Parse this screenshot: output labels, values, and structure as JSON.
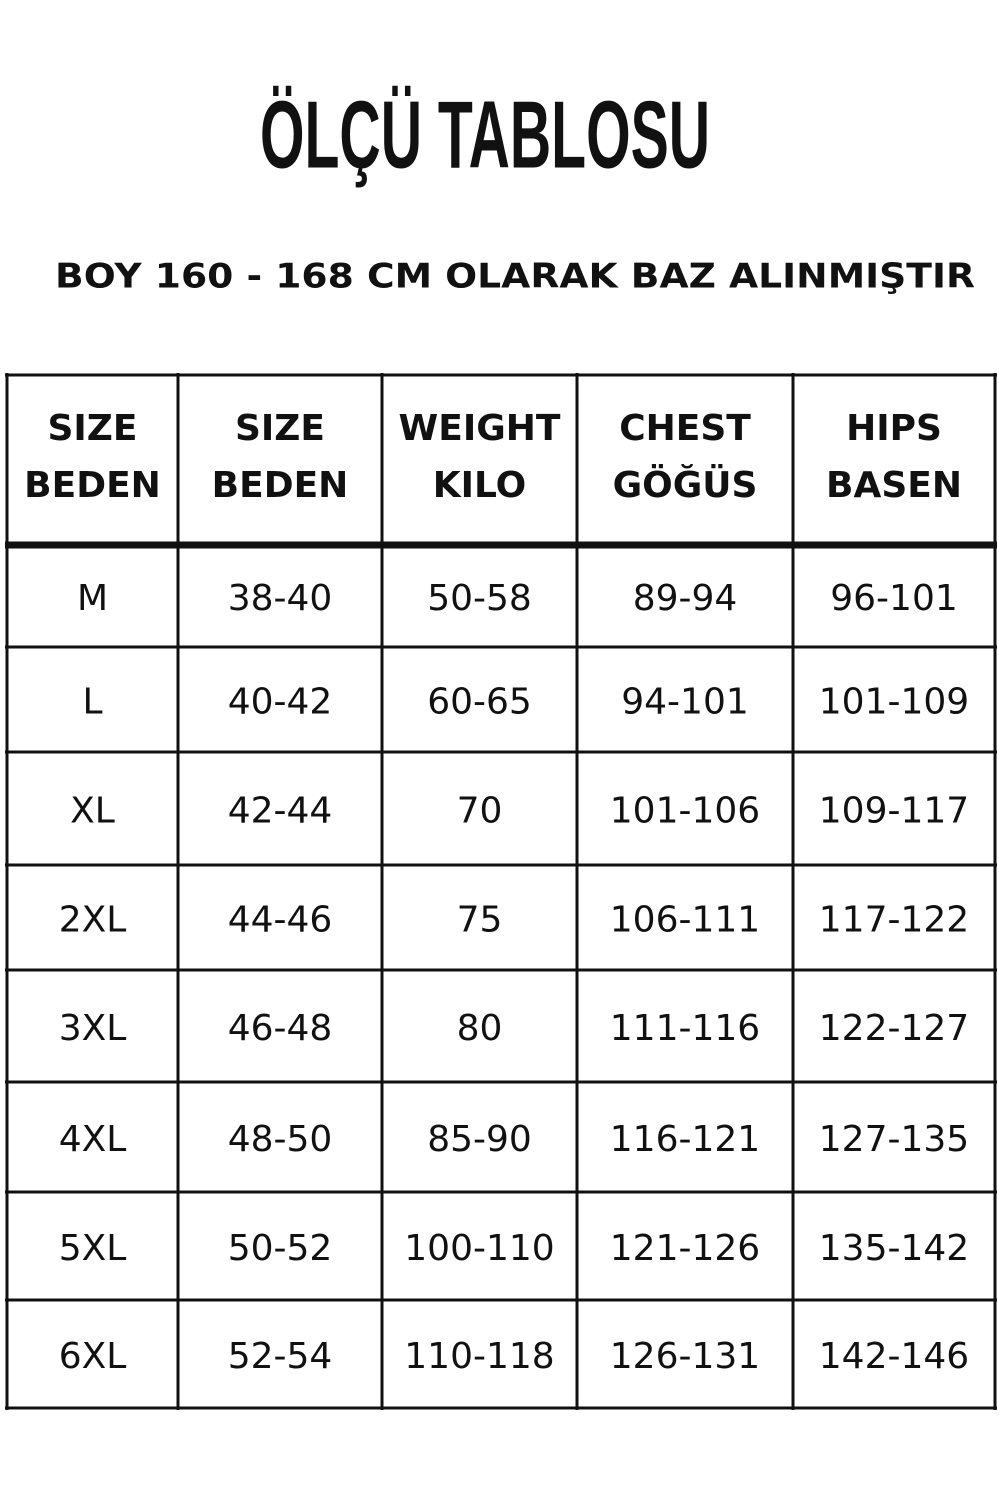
{
  "title": "ÖLÇÜ TABLOSU",
  "subtitle": "BOY 160 - 168 CM OLARAK BAZ ALINMIŞTIR",
  "table": {
    "header": [
      [
        "SIZE",
        "BEDEN"
      ],
      [
        "SIZE",
        "BEDEN"
      ],
      [
        "WEIGHT",
        "KILO"
      ],
      [
        "CHEST",
        "GÖĞÜS"
      ],
      [
        "HIPS",
        "BASEN"
      ]
    ],
    "rows": [
      [
        "M",
        "38-40",
        "50-58",
        "89-94",
        "96-101"
      ],
      [
        "L",
        "40-42",
        "60-65",
        "94-101",
        "101-109"
      ],
      [
        "XL",
        "42-44",
        "70",
        "101-106",
        "109-117"
      ],
      [
        "2XL",
        "44-46",
        "75",
        "106-111",
        "117-122"
      ],
      [
        "3XL",
        "46-48",
        "80",
        "111-116",
        "122-127"
      ],
      [
        "4XL",
        "48-50",
        "85-90",
        "116-121",
        "127-135"
      ],
      [
        "5XL",
        "50-52",
        "100-110",
        "121-126",
        "135-142"
      ],
      [
        "6XL",
        "52-54",
        "110-118",
        "126-131",
        "142-146"
      ]
    ]
  }
}
